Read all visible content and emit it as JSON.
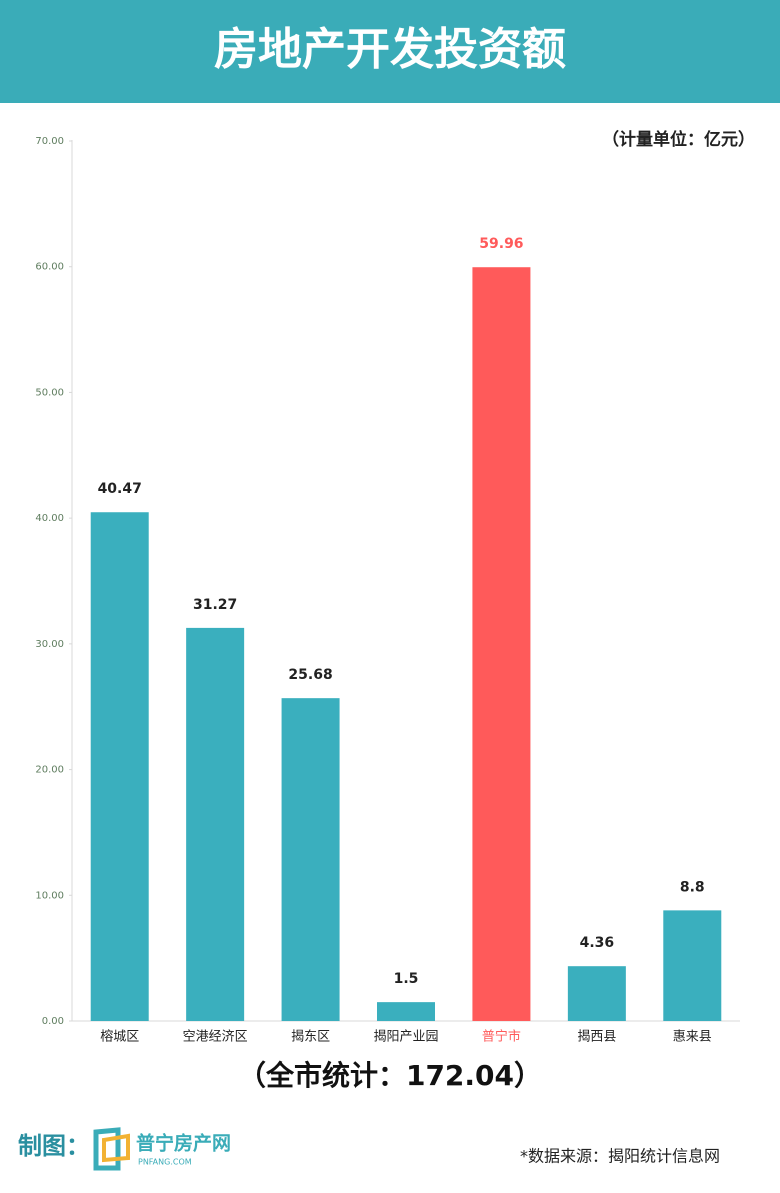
{
  "chart_data": {
    "type": "bar",
    "title": "房地产开发投资额",
    "subtitle": "（计量单位：亿元）",
    "categories": [
      "榕城区",
      "空港经济区",
      "揭东区",
      "揭阳产业园",
      "普宁市",
      "揭西县",
      "惠来县"
    ],
    "values": [
      40.47,
      31.27,
      25.68,
      1.5,
      59.96,
      4.36,
      8.8
    ],
    "colors": [
      "#3aafbe",
      "#3aafbe",
      "#3aafbe",
      "#3aafbe",
      "#ff5a5a",
      "#3aafbe",
      "#3aafbe"
    ],
    "ylim": [
      0,
      70
    ],
    "yticks": [
      {
        "value": 0,
        "label": "0.00"
      },
      {
        "value": 10,
        "label": "10.00"
      },
      {
        "value": 20,
        "label": "20.00"
      },
      {
        "value": 30,
        "label": "30.00"
      },
      {
        "value": 40,
        "label": "40.00"
      },
      {
        "value": 50,
        "label": "50.00"
      },
      {
        "value": 60,
        "label": "60.00"
      },
      {
        "value": 70,
        "label": "70.00"
      }
    ],
    "grid": false
  },
  "footer": {
    "summary": "（全市统计：172.04）",
    "maker": "制图：",
    "logo_name": "普宁房产网",
    "logo_site": "PNFANG.COM",
    "source": "*数据来源：揭阳统计信息网"
  }
}
